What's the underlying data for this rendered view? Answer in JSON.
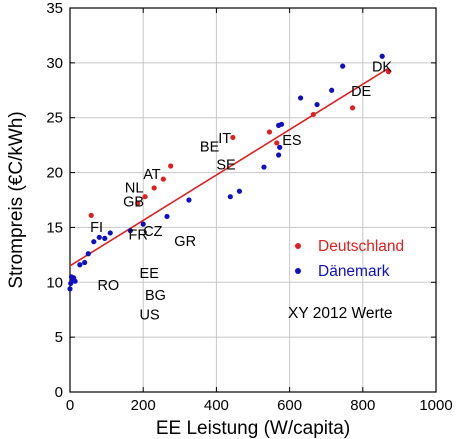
{
  "chart_data": {
    "type": "scatter",
    "xlabel": "EE Leistung (W/capita)",
    "ylabel": "Strompreis (€C/kWh)",
    "xlim": [
      0,
      1000
    ],
    "ylim": [
      0,
      35
    ],
    "xticks": [
      0,
      200,
      400,
      600,
      800,
      1000
    ],
    "yticks": [
      0,
      5,
      10,
      15,
      20,
      25,
      30,
      35
    ],
    "grid": true,
    "legend_position": "lower-right",
    "annotation": "XY 2012 Werte",
    "series": [
      {
        "name": "Deutschland",
        "color": "#e02020",
        "points": [
          [
            58,
            16.1
          ],
          [
            185,
            17.2
          ],
          [
            205,
            17.8
          ],
          [
            230,
            18.6
          ],
          [
            255,
            19.4
          ],
          [
            275,
            20.6
          ],
          [
            445,
            23.2
          ],
          [
            545,
            23.7
          ],
          [
            565,
            22.7
          ],
          [
            665,
            25.3
          ],
          [
            772,
            25.9
          ],
          [
            870,
            29.2
          ]
        ]
      },
      {
        "name": "Dänemark",
        "color": "#1010c0",
        "points": [
          [
            0,
            9.4
          ],
          [
            2,
            9.9
          ],
          [
            4,
            10.5
          ],
          [
            7,
            10.2
          ],
          [
            10,
            10.4
          ],
          [
            14,
            10.1
          ],
          [
            27,
            11.6
          ],
          [
            40,
            11.8
          ],
          [
            50,
            12.6
          ],
          [
            65,
            13.7
          ],
          [
            80,
            14.1
          ],
          [
            95,
            14.0
          ],
          [
            110,
            14.5
          ],
          [
            165,
            14.7
          ],
          [
            200,
            15.3
          ],
          [
            265,
            16.0
          ],
          [
            325,
            17.5
          ],
          [
            438,
            17.8
          ],
          [
            463,
            18.3
          ],
          [
            530,
            20.5
          ],
          [
            570,
            21.6
          ],
          [
            573,
            22.3
          ],
          [
            570,
            24.3
          ],
          [
            578,
            24.4
          ],
          [
            630,
            26.8
          ],
          [
            675,
            26.2
          ],
          [
            715,
            27.5
          ],
          [
            745,
            29.7
          ],
          [
            853,
            30.6
          ]
        ]
      }
    ],
    "trend_line": {
      "color": "#e02020",
      "from": [
        0,
        11.5
      ],
      "to": [
        870,
        29.5
      ]
    },
    "point_labels": [
      {
        "text": "DK",
        "x": 825,
        "y": 29.2
      },
      {
        "text": "DE",
        "x": 768,
        "y": 27.0
      },
      {
        "text": "IT",
        "x": 405,
        "y": 22.7
      },
      {
        "text": "ES",
        "x": 580,
        "y": 22.5
      },
      {
        "text": "BE",
        "x": 355,
        "y": 21.9
      },
      {
        "text": "SE",
        "x": 400,
        "y": 20.3
      },
      {
        "text": "AT",
        "x": 200,
        "y": 19.4
      },
      {
        "text": "NL",
        "x": 150,
        "y": 18.2
      },
      {
        "text": "GB",
        "x": 145,
        "y": 16.9
      },
      {
        "text": "FI",
        "x": 55,
        "y": 14.6
      },
      {
        "text": "FR",
        "x": 160,
        "y": 13.9
      },
      {
        "text": "CZ",
        "x": 200,
        "y": 14.2
      },
      {
        "text": "GR",
        "x": 285,
        "y": 13.3
      },
      {
        "text": "RO",
        "x": 75,
        "y": 9.3
      },
      {
        "text": "EE",
        "x": 190,
        "y": 10.4
      },
      {
        "text": "BG",
        "x": 205,
        "y": 8.4
      },
      {
        "text": "US",
        "x": 190,
        "y": 6.6
      }
    ]
  }
}
